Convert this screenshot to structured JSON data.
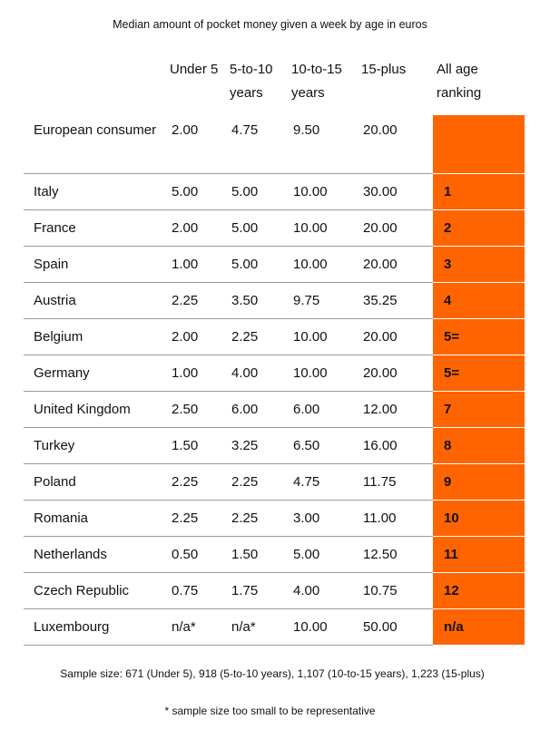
{
  "chart_data": {
    "type": "table",
    "title": "Median amount of pocket money given a week by age in euros",
    "columns": [
      "",
      "Under 5",
      "5-to-10 years",
      "10-to-15 years",
      "15-plus",
      "All age ranking"
    ],
    "rows": [
      [
        "European consumer",
        "2.00",
        "4.75",
        "9.50",
        "20.00",
        ""
      ],
      [
        "Italy",
        "5.00",
        "5.00",
        "10.00",
        "30.00",
        "1"
      ],
      [
        "France",
        "2.00",
        "5.00",
        "10.00",
        "20.00",
        "2"
      ],
      [
        "Spain",
        "1.00",
        "5.00",
        "10.00",
        "20.00",
        "3"
      ],
      [
        "Austria",
        "2.25",
        "3.50",
        "9.75",
        "35.25",
        "4"
      ],
      [
        "Belgium",
        "2.00",
        "2.25",
        "10.00",
        "20.00",
        "5="
      ],
      [
        "Germany",
        "1.00",
        "4.00",
        "10.00",
        "20.00",
        "5="
      ],
      [
        "United Kingdom",
        "2.50",
        "6.00",
        "6.00",
        "12.00",
        "7"
      ],
      [
        "Turkey",
        "1.50",
        "3.25",
        "6.50",
        "16.00",
        "8"
      ],
      [
        "Poland",
        "2.25",
        "2.25",
        "4.75",
        "11.75",
        "9"
      ],
      [
        "Romania",
        "2.25",
        "2.25",
        "3.00",
        "11.00",
        "10"
      ],
      [
        "Netherlands",
        "0.50",
        "1.50",
        "5.00",
        "12.50",
        "11"
      ],
      [
        "Czech Republic",
        "0.75",
        "1.75",
        "4.00",
        "10.75",
        "12"
      ],
      [
        "Luxembourg",
        "n/a*",
        "n/a*",
        "10.00",
        "50.00",
        "n/a"
      ]
    ],
    "footnotes": [
      "Sample size: 671 (Under 5), 918 (5-to-10 years), 1,107 (10-to-15 years), 1,223 (15-plus)",
      "* sample size too small to be representative"
    ],
    "colors": {
      "ranking_fill": "#ff6400",
      "row_rule": "#9a9a9a"
    }
  }
}
